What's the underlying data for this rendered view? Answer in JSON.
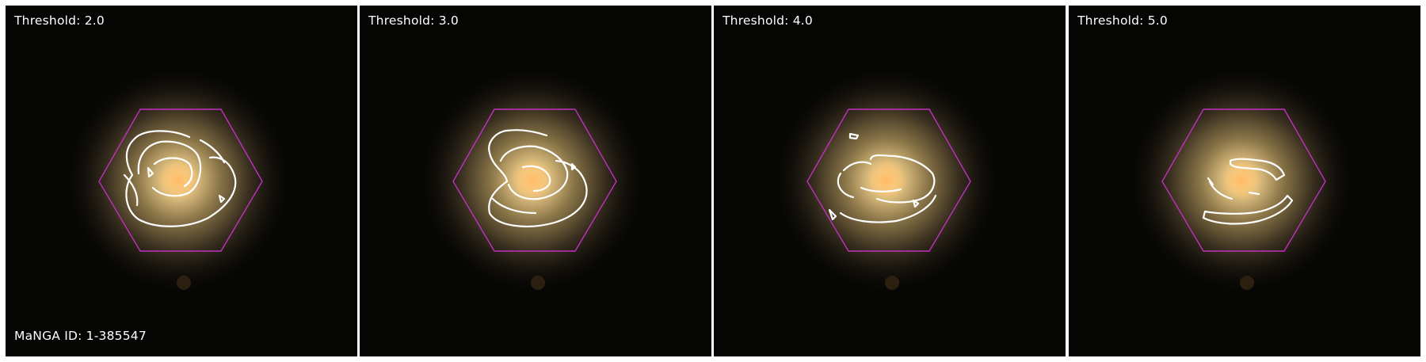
{
  "panels": [
    {
      "threshold_label": "Threshold: 2.0"
    },
    {
      "threshold_label": "Threshold: 3.0"
    },
    {
      "threshold_label": "Threshold: 4.0"
    },
    {
      "threshold_label": "Threshold: 5.0"
    }
  ],
  "manga_id_label": "MaNGA ID: 1-385547",
  "colors": {
    "background": "#050504",
    "contour": "#ffffff",
    "hexagon": "#c030c0",
    "galaxy_core": "#ffd98a"
  }
}
